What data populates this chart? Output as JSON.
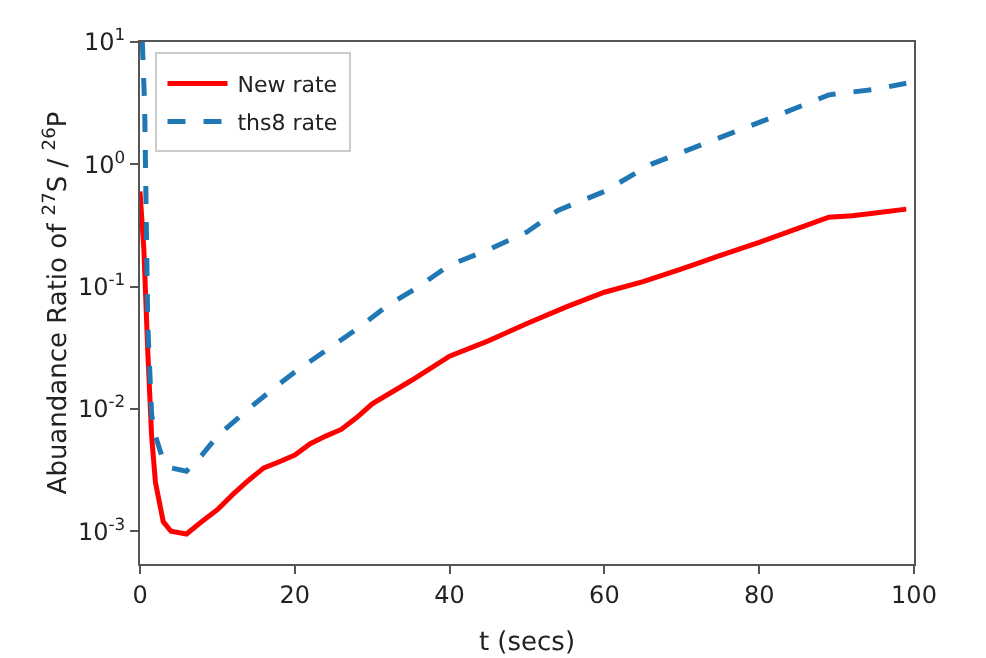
{
  "chart_data": {
    "type": "line",
    "xlabel": "t (secs)",
    "ylabel": "Abuandance Ratio of $^{27}$S / $^{26}$P",
    "log": "y",
    "grid": false,
    "legend": "top left",
    "xlim": [
      0,
      100
    ],
    "xticks": [
      0,
      20,
      40,
      60,
      80,
      100
    ],
    "ylim": [
      0.00054,
      10
    ],
    "yticks": [
      {
        "value": 0.001,
        "label": "10$^{-3}$"
      },
      {
        "value": 0.01,
        "label": "10$^{-2}$"
      },
      {
        "value": 0.1,
        "label": "10$^{-1}$"
      },
      {
        "value": 1,
        "label": "10$^{0}$"
      },
      {
        "value": 10,
        "label": "10$^{1}$"
      }
    ],
    "series": [
      {
        "name": "New rate",
        "color": "#ff0000",
        "line_style": "solid",
        "x": [
          0,
          0.5,
          1,
          1.5,
          2,
          3,
          4,
          6,
          8,
          10,
          12,
          14,
          16,
          18,
          20,
          22,
          24,
          26,
          28,
          30,
          35,
          40,
          45,
          50,
          55,
          60,
          65,
          70,
          75,
          80,
          85,
          89,
          92,
          95,
          99
        ],
        "values": [
          0.6,
          0.2,
          0.03,
          0.006,
          0.0025,
          0.0012,
          0.001,
          0.00095,
          0.0012,
          0.0015,
          0.002,
          0.0026,
          0.0033,
          0.0037,
          0.0042,
          0.0052,
          0.006,
          0.0068,
          0.0085,
          0.011,
          0.017,
          0.027,
          0.036,
          0.05,
          0.068,
          0.09,
          0.11,
          0.14,
          0.18,
          0.23,
          0.3,
          0.37,
          0.38,
          0.4,
          0.43
        ]
      },
      {
        "name": "ths8 rate",
        "color": "#1f77b4",
        "line_style": "dashed",
        "x": [
          0.3,
          0.6,
          1,
          1.5,
          2,
          3,
          4,
          6,
          8,
          10,
          14,
          18,
          20,
          24,
          28,
          32,
          36,
          40,
          45,
          50,
          54,
          60,
          66,
          72,
          80,
          86,
          89,
          92,
          95,
          99
        ],
        "values": [
          10,
          3,
          0.05,
          0.009,
          0.006,
          0.0038,
          0.0033,
          0.0031,
          0.0042,
          0.006,
          0.01,
          0.016,
          0.02,
          0.03,
          0.045,
          0.07,
          0.1,
          0.15,
          0.2,
          0.28,
          0.42,
          0.6,
          1.0,
          1.4,
          2.2,
          3.1,
          3.7,
          3.9,
          4.1,
          4.6
        ]
      }
    ]
  }
}
